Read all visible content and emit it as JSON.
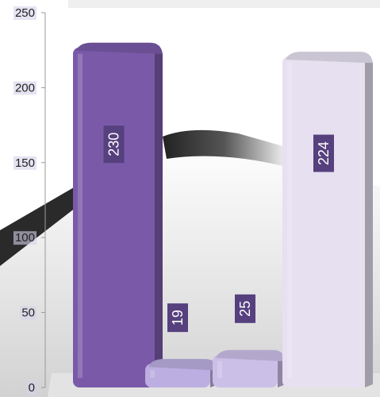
{
  "chart_data": {
    "type": "bar",
    "categories": [
      "",
      "",
      "",
      ""
    ],
    "values": [
      230,
      19,
      25,
      224
    ],
    "data_labels": [
      "230",
      "19",
      "25",
      "224"
    ],
    "ylim": [
      0,
      250
    ],
    "yticks": [
      0,
      50,
      100,
      150,
      200,
      250
    ],
    "ytick_labels": [
      "0",
      "50",
      "100",
      "150",
      "200",
      "250"
    ],
    "grid": false,
    "legend": "none",
    "style": "3d-cylinder",
    "colors": {
      "bar_1": "#7a5aa8",
      "bar_2": "#bcaee0",
      "bar_3": "#cbbfe8",
      "bar_4": "#e6e0f0",
      "label_bg": "#56407e",
      "tick_highlight": "#d6d0ea"
    }
  }
}
